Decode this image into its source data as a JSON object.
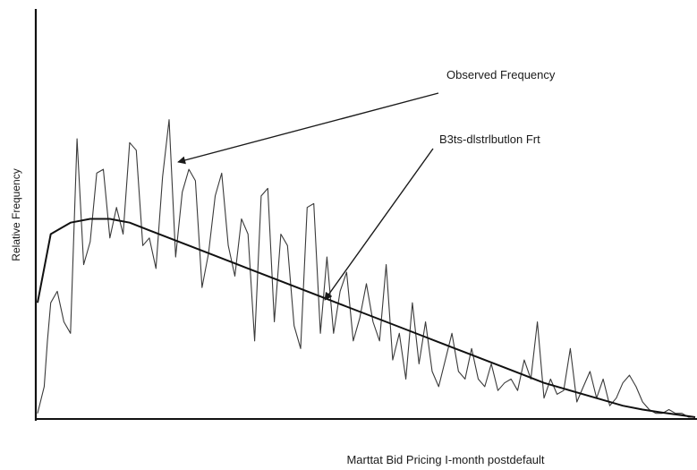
{
  "chart_data": {
    "type": "line",
    "title": "",
    "xlabel": "Marttat Bid Pricing I-month postdefault",
    "ylabel": "Relative Frequency",
    "xlim": [
      0,
      100
    ],
    "ylim": [
      0,
      100
    ],
    "grid": false,
    "series": [
      {
        "name": "Observed Frequency",
        "x": [
          0,
          1,
          1.5,
          2,
          3,
          4,
          5,
          6,
          7,
          8,
          9,
          10,
          11,
          12,
          13,
          14,
          15,
          16,
          17,
          18,
          19,
          20,
          21,
          22,
          23,
          24,
          25,
          26,
          27,
          28,
          29,
          30,
          31,
          32,
          33,
          34,
          35,
          36,
          37,
          38,
          39,
          40,
          41,
          42,
          43,
          44,
          45,
          46,
          47,
          48,
          49,
          50,
          51,
          52,
          53,
          54,
          55,
          56,
          57,
          58,
          59,
          60,
          61,
          62,
          63,
          64,
          65,
          66,
          67,
          68,
          69,
          70,
          71,
          72,
          73,
          74,
          75,
          76,
          77,
          78,
          79,
          80,
          81,
          82,
          83,
          84,
          85,
          86,
          87,
          88,
          89,
          90,
          91,
          92,
          93,
          94,
          95,
          96,
          97,
          98,
          99,
          100
        ],
        "values": [
          1,
          8,
          20,
          30,
          33,
          25,
          22,
          73,
          40,
          46,
          64,
          65,
          47,
          55,
          48,
          72,
          70,
          45,
          47,
          39,
          63,
          78,
          42,
          59,
          65,
          62,
          34,
          43,
          58,
          64,
          45,
          37,
          52,
          48,
          20,
          58,
          60,
          25,
          48,
          45,
          24,
          18,
          55,
          56,
          22,
          42,
          22,
          33,
          38,
          20,
          26,
          35,
          25,
          20,
          40,
          15,
          22,
          10,
          30,
          14,
          25,
          12,
          8,
          15,
          22,
          12,
          10,
          18,
          10,
          8,
          14,
          7,
          9,
          10,
          7,
          15,
          10,
          25,
          5,
          10,
          6,
          7,
          18,
          4,
          8,
          12,
          5,
          10,
          3,
          5,
          9,
          11,
          8,
          4,
          2,
          1,
          1,
          2,
          1,
          1,
          0,
          0
        ]
      },
      {
        "name": "B3ts-dlstrlbutlon Frt",
        "x": [
          0,
          2,
          5,
          8,
          11,
          14,
          17,
          20,
          23,
          26,
          29,
          32,
          35,
          38,
          41,
          44,
          47,
          50,
          53,
          56,
          59,
          62,
          65,
          68,
          71,
          74,
          77,
          80,
          83,
          86,
          89,
          92,
          95,
          98,
          100
        ],
        "values": [
          30,
          48,
          51,
          52,
          52,
          51,
          49,
          47,
          45,
          43,
          41,
          39,
          37,
          35,
          33,
          31,
          29,
          27,
          25,
          23,
          21,
          19,
          17,
          15,
          13,
          11,
          9,
          7.5,
          6,
          4.5,
          3,
          2,
          1.2,
          0.5,
          0
        ]
      }
    ],
    "annotations": [
      {
        "text": "Observed Frequency",
        "target_series": 0
      },
      {
        "text": "B3ts-dlstrlbutlon Frt",
        "target_series": 1
      }
    ]
  }
}
